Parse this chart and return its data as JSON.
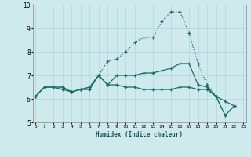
{
  "xlabel": "Humidex (Indice chaleur)",
  "xlim": [
    0,
    23
  ],
  "ylim": [
    5,
    10
  ],
  "yticks": [
    5,
    6,
    7,
    8,
    9,
    10
  ],
  "bg_color": "#ceeaec",
  "grid_color": "#b2d6d9",
  "line_color": "#1a6b6b",
  "series": [
    {
      "linestyle": "dotted",
      "x": [
        0,
        1,
        2,
        3,
        4,
        5,
        6,
        7,
        8,
        9,
        10,
        11,
        12,
        13,
        14,
        15,
        16,
        17,
        18,
        19,
        20,
        21,
        22
      ],
      "y": [
        6.1,
        6.5,
        6.5,
        6.5,
        6.3,
        6.4,
        6.5,
        7.0,
        7.6,
        7.7,
        8.0,
        8.4,
        8.6,
        8.6,
        9.3,
        9.7,
        9.7,
        8.8,
        7.5,
        6.6,
        6.1,
        5.3,
        5.7
      ]
    },
    {
      "linestyle": "solid",
      "x": [
        0,
        1,
        2,
        3,
        4,
        5,
        6,
        7,
        8,
        9,
        10,
        11,
        12,
        13,
        14,
        15,
        16,
        17,
        18,
        19,
        20,
        21,
        22
      ],
      "y": [
        6.1,
        6.5,
        6.5,
        6.4,
        6.3,
        6.4,
        6.5,
        7.0,
        6.6,
        7.0,
        7.0,
        7.0,
        7.1,
        7.1,
        7.2,
        7.3,
        7.5,
        7.5,
        6.6,
        6.5,
        6.1,
        5.3,
        5.7
      ]
    },
    {
      "linestyle": "solid",
      "x": [
        0,
        1,
        2,
        3,
        4,
        5,
        6,
        7,
        8,
        9,
        10,
        11,
        12,
        13,
        14,
        15,
        16,
        17,
        18,
        19,
        20,
        21,
        22
      ],
      "y": [
        6.1,
        6.5,
        6.5,
        6.5,
        6.3,
        6.4,
        6.4,
        7.0,
        6.6,
        6.6,
        6.5,
        6.5,
        6.4,
        6.4,
        6.4,
        6.4,
        6.5,
        6.5,
        6.4,
        6.4,
        6.1,
        5.9,
        5.7
      ]
    }
  ]
}
